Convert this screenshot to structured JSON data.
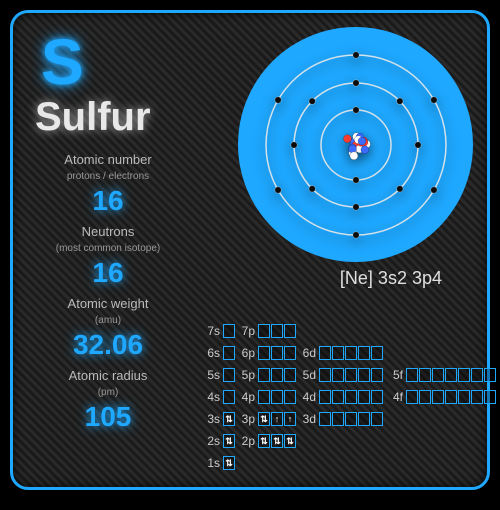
{
  "colors": {
    "accent": "#1ea8ff",
    "border": "#1ea8ff",
    "disc": "#1ea8ff",
    "text_light": "#e8e8e8",
    "box_border": "#1ea8ff",
    "orbit_stroke": "#e8e8e8"
  },
  "element": {
    "symbol": "S",
    "name": "Sulfur"
  },
  "properties": [
    {
      "label": "Atomic number",
      "sublabel": "protons / electrons",
      "value": "16"
    },
    {
      "label": "Neutrons",
      "sublabel": "(most common isotope)",
      "value": "16"
    },
    {
      "label": "Atomic weight",
      "sublabel": "(amu)",
      "value": "32.06"
    },
    {
      "label": "Atomic radius",
      "sublabel": "(pm)",
      "value": "105"
    }
  ],
  "econf_text": "[Ne] 3s2 3p4",
  "atom": {
    "radius": 110,
    "shells": [
      {
        "r": 35,
        "electrons": 2
      },
      {
        "r": 62,
        "electrons": 8
      },
      {
        "r": 90,
        "electrons": 6
      }
    ],
    "nucleus_colors": [
      "#ff3b2f",
      "#3b6bff",
      "#ffffff"
    ]
  },
  "orbitals": {
    "rows": [
      {
        "cells": [
          {
            "l": "7s",
            "n": 1,
            "f": []
          },
          {
            "l": "7p",
            "n": 3,
            "f": []
          }
        ]
      },
      {
        "cells": [
          {
            "l": "6s",
            "n": 1,
            "f": []
          },
          {
            "l": "6p",
            "n": 3,
            "f": []
          },
          {
            "l": "6d",
            "n": 5,
            "f": []
          }
        ]
      },
      {
        "cells": [
          {
            "l": "5s",
            "n": 1,
            "f": []
          },
          {
            "l": "5p",
            "n": 3,
            "f": []
          },
          {
            "l": "5d",
            "n": 5,
            "f": []
          },
          {
            "l": "5f",
            "n": 7,
            "f": []
          }
        ]
      },
      {
        "cells": [
          {
            "l": "4s",
            "n": 1,
            "f": []
          },
          {
            "l": "4p",
            "n": 3,
            "f": []
          },
          {
            "l": "4d",
            "n": 5,
            "f": []
          },
          {
            "l": "4f",
            "n": 7,
            "f": []
          }
        ]
      },
      {
        "cells": [
          {
            "l": "3s",
            "n": 1,
            "f": [
              "⇅"
            ]
          },
          {
            "l": "3p",
            "n": 3,
            "f": [
              "⇅",
              "↑",
              "↑"
            ]
          },
          {
            "l": "3d",
            "n": 5,
            "f": []
          }
        ]
      },
      {
        "cells": [
          {
            "l": "2s",
            "n": 1,
            "f": [
              "⇅"
            ]
          },
          {
            "l": "2p",
            "n": 3,
            "f": [
              "⇅",
              "⇅",
              "⇅"
            ]
          }
        ]
      },
      {
        "cells": [
          {
            "l": "1s",
            "n": 1,
            "f": [
              "⇅"
            ]
          }
        ]
      }
    ]
  }
}
